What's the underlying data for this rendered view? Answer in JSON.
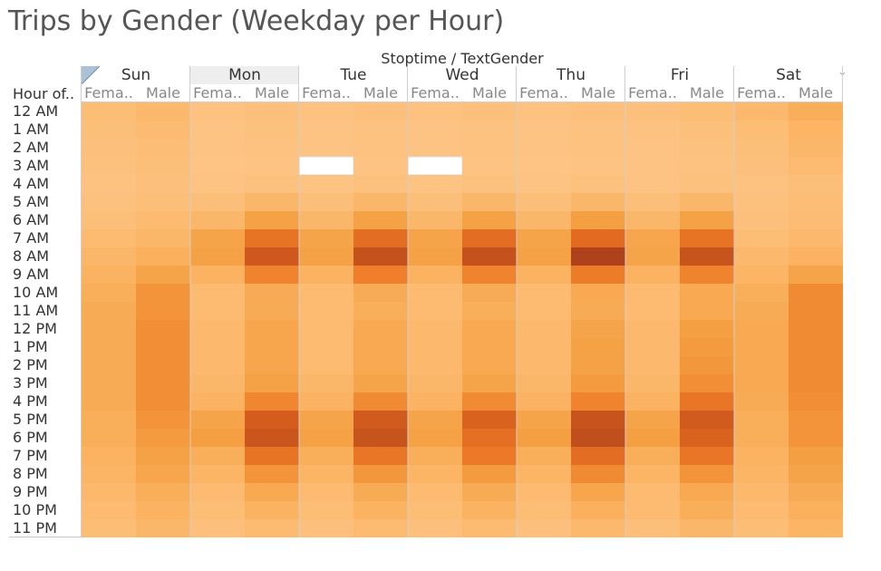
{
  "title": "Trips by Gender (Weekday per Hour)",
  "column_field_label": "Stoptime / TextGender",
  "row_field_label": "Hour of..",
  "selected_day": "Mon",
  "colors": {
    "scale": [
      "#fdc586",
      "#fbb463",
      "#f5a044",
      "#ef7f2a",
      "#df661f",
      "#c6521d",
      "#a83c1d"
    ],
    "missing": "#ffffff"
  },
  "chart_data": {
    "type": "heatmap",
    "title": "Trips by Gender (Weekday per Hour)",
    "column_field": "Stoptime / TextGender",
    "row_field": "Hour of..",
    "days": [
      "Sun",
      "Mon",
      "Tue",
      "Wed",
      "Thu",
      "Fri",
      "Sat"
    ],
    "genders": [
      "Fema..",
      "Male"
    ],
    "hours": [
      "12 AM",
      "1 AM",
      "2 AM",
      "3 AM",
      "4 AM",
      "5 AM",
      "6 AM",
      "7 AM",
      "8 AM",
      "9 AM",
      "10 AM",
      "11 AM",
      "12 PM",
      "1 PM",
      "2 PM",
      "3 PM",
      "4 PM",
      "5 PM",
      "6 PM",
      "7 PM",
      "8 PM",
      "9 PM",
      "10 PM",
      "11 PM"
    ],
    "value_scale": "relative trip intensity 0-100",
    "columns": [
      "Sun Fema..",
      "Sun Male",
      "Mon Fema..",
      "Mon Male",
      "Tue Fema..",
      "Tue Male",
      "Wed Fema..",
      "Wed Male",
      "Thu Fema..",
      "Thu Male",
      "Fri Fema..",
      "Fri Male",
      "Sat Fema..",
      "Sat Male"
    ],
    "values": [
      [
        8,
        12,
        3,
        5,
        3,
        5,
        3,
        5,
        3,
        5,
        5,
        8,
        12,
        22
      ],
      [
        6,
        10,
        2,
        4,
        2,
        3,
        2,
        3,
        2,
        3,
        3,
        5,
        8,
        16
      ],
      [
        5,
        8,
        2,
        3,
        2,
        3,
        2,
        3,
        2,
        3,
        2,
        4,
        6,
        14
      ],
      [
        4,
        6,
        1,
        2,
        null,
        2,
        null,
        2,
        1,
        2,
        2,
        3,
        5,
        10
      ],
      [
        3,
        5,
        2,
        4,
        2,
        4,
        2,
        4,
        2,
        4,
        2,
        4,
        3,
        6
      ],
      [
        4,
        6,
        6,
        14,
        6,
        14,
        6,
        14,
        6,
        14,
        6,
        14,
        4,
        7
      ],
      [
        6,
        10,
        14,
        32,
        14,
        32,
        14,
        32,
        14,
        34,
        14,
        32,
        5,
        9
      ],
      [
        10,
        14,
        30,
        58,
        30,
        62,
        30,
        62,
        30,
        64,
        28,
        58,
        8,
        12
      ],
      [
        14,
        20,
        32,
        78,
        32,
        84,
        32,
        84,
        32,
        96,
        30,
        82,
        12,
        18
      ],
      [
        18,
        30,
        18,
        48,
        18,
        50,
        18,
        48,
        18,
        52,
        18,
        48,
        16,
        30
      ],
      [
        22,
        40,
        10,
        25,
        10,
        24,
        10,
        24,
        10,
        26,
        10,
        26,
        22,
        44
      ],
      [
        24,
        40,
        10,
        24,
        10,
        22,
        10,
        22,
        10,
        24,
        10,
        26,
        24,
        44
      ],
      [
        24,
        42,
        12,
        28,
        10,
        26,
        12,
        26,
        12,
        30,
        12,
        34,
        26,
        44
      ],
      [
        24,
        42,
        12,
        28,
        10,
        26,
        12,
        26,
        12,
        32,
        12,
        36,
        26,
        44
      ],
      [
        24,
        42,
        12,
        28,
        10,
        26,
        12,
        26,
        12,
        32,
        12,
        38,
        26,
        44
      ],
      [
        24,
        42,
        14,
        32,
        14,
        30,
        14,
        30,
        14,
        36,
        14,
        42,
        26,
        44
      ],
      [
        24,
        42,
        18,
        46,
        18,
        44,
        18,
        44,
        18,
        48,
        18,
        56,
        24,
        42
      ],
      [
        22,
        40,
        30,
        74,
        30,
        76,
        30,
        70,
        30,
        82,
        30,
        76,
        22,
        40
      ],
      [
        22,
        36,
        34,
        80,
        32,
        82,
        32,
        60,
        34,
        86,
        34,
        70,
        22,
        40
      ],
      [
        18,
        32,
        22,
        58,
        22,
        56,
        22,
        54,
        22,
        62,
        22,
        56,
        18,
        34
      ],
      [
        16,
        28,
        16,
        40,
        16,
        38,
        16,
        36,
        16,
        44,
        16,
        40,
        16,
        30
      ],
      [
        12,
        22,
        10,
        26,
        10,
        24,
        10,
        24,
        10,
        28,
        10,
        26,
        12,
        24
      ],
      [
        10,
        18,
        8,
        18,
        8,
        18,
        8,
        18,
        8,
        20,
        10,
        22,
        10,
        20
      ],
      [
        8,
        14,
        5,
        10,
        5,
        10,
        5,
        10,
        5,
        12,
        6,
        14,
        8,
        16
      ]
    ]
  }
}
